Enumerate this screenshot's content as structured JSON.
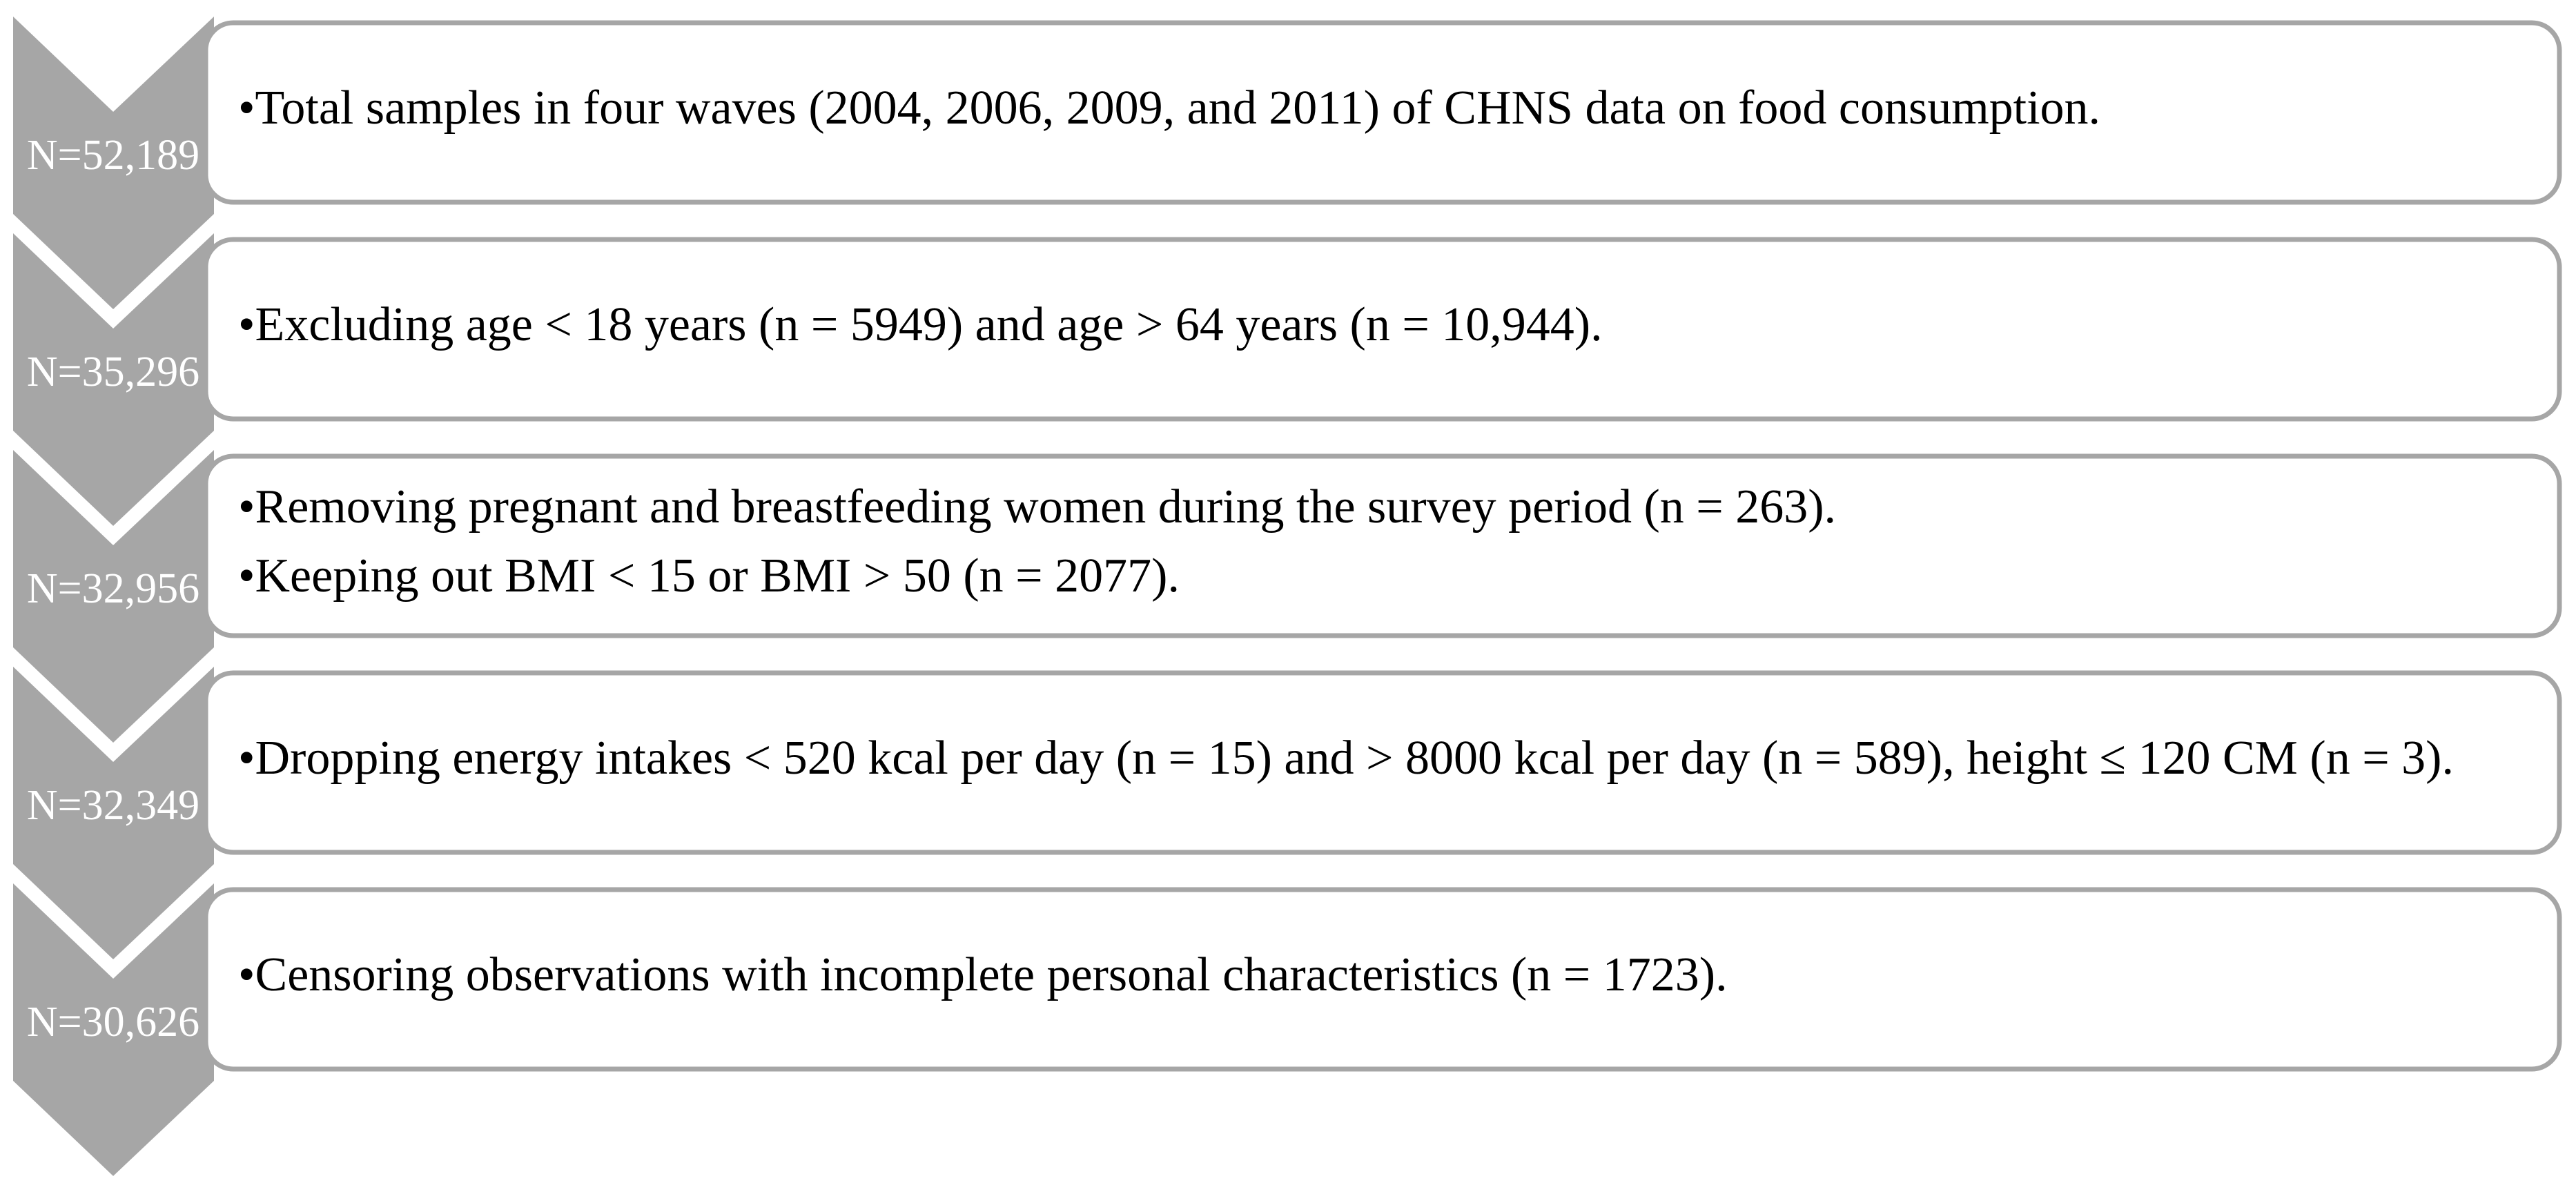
{
  "steps": [
    {
      "count": "N=52,189",
      "items": [
        "•Total samples in four waves (2004, 2006, 2009, and 2011) of CHNS data on food consumption."
      ]
    },
    {
      "count": "N=35,296",
      "items": [
        "•Excluding age < 18 years (n = 5949) and age > 64 years (n = 10,944)."
      ]
    },
    {
      "count": "N=32,956",
      "items": [
        "•Removing pregnant and breastfeeding women during the survey period (n = 263).",
        "•Keeping out BMI < 15 or BMI > 50 (n = 2077)."
      ]
    },
    {
      "count": "N=32,349",
      "items": [
        "•Dropping energy intakes < 520 kcal per day (n = 15) and > 8000 kcal per day (n = 589), height ≤ 120 CM (n = 3)."
      ]
    },
    {
      "count": "N=30,626",
      "items": [
        "•Censoring observations with incomplete personal characteristics (n = 1723)."
      ]
    }
  ]
}
